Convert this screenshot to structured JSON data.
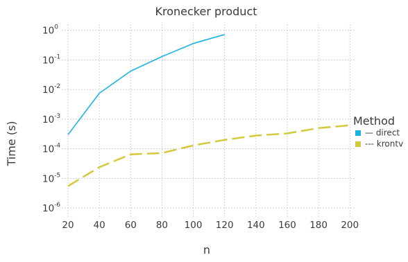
{
  "chart_data": {
    "type": "line",
    "title": "Kronecker product",
    "xlabel": "n",
    "ylabel": "Time (s)",
    "x_ticks": [
      20,
      40,
      60,
      80,
      100,
      120,
      140,
      160,
      180,
      200
    ],
    "y_scale": "log",
    "y_ticks": [
      {
        "value": 1e-06,
        "base": "10",
        "exp": "-6"
      },
      {
        "value": 1e-05,
        "base": "10",
        "exp": "-5"
      },
      {
        "value": 0.0001,
        "base": "10",
        "exp": "-4"
      },
      {
        "value": 0.001,
        "base": "10",
        "exp": "-3"
      },
      {
        "value": 0.01,
        "base": "10",
        "exp": "-2"
      },
      {
        "value": 0.1,
        "base": "10",
        "exp": "-1"
      },
      {
        "value": 1,
        "base": "10",
        "exp": "0"
      }
    ],
    "xlim": [
      16,
      203
    ],
    "ylim": [
      5e-07,
      1.6
    ],
    "grid": true,
    "legend_title": "Method",
    "legend_position": "right",
    "series": [
      {
        "name": "— direct",
        "color": "#1ab3e6",
        "line_style": "solid",
        "x": [
          20,
          40,
          60,
          80,
          100,
          120
        ],
        "y": [
          0.0003,
          0.0075,
          0.042,
          0.13,
          0.36,
          0.72
        ]
      },
      {
        "name": "--- krontv",
        "color": "#d4c93a",
        "line_style": "dashed",
        "x": [
          20,
          40,
          60,
          80,
          100,
          120,
          140,
          160,
          180,
          200
        ],
        "y": [
          5.5e-06,
          2.4e-05,
          6.5e-05,
          7.2e-05,
          0.00013,
          0.0002,
          0.00028,
          0.00033,
          0.0005,
          0.00062
        ]
      }
    ]
  }
}
